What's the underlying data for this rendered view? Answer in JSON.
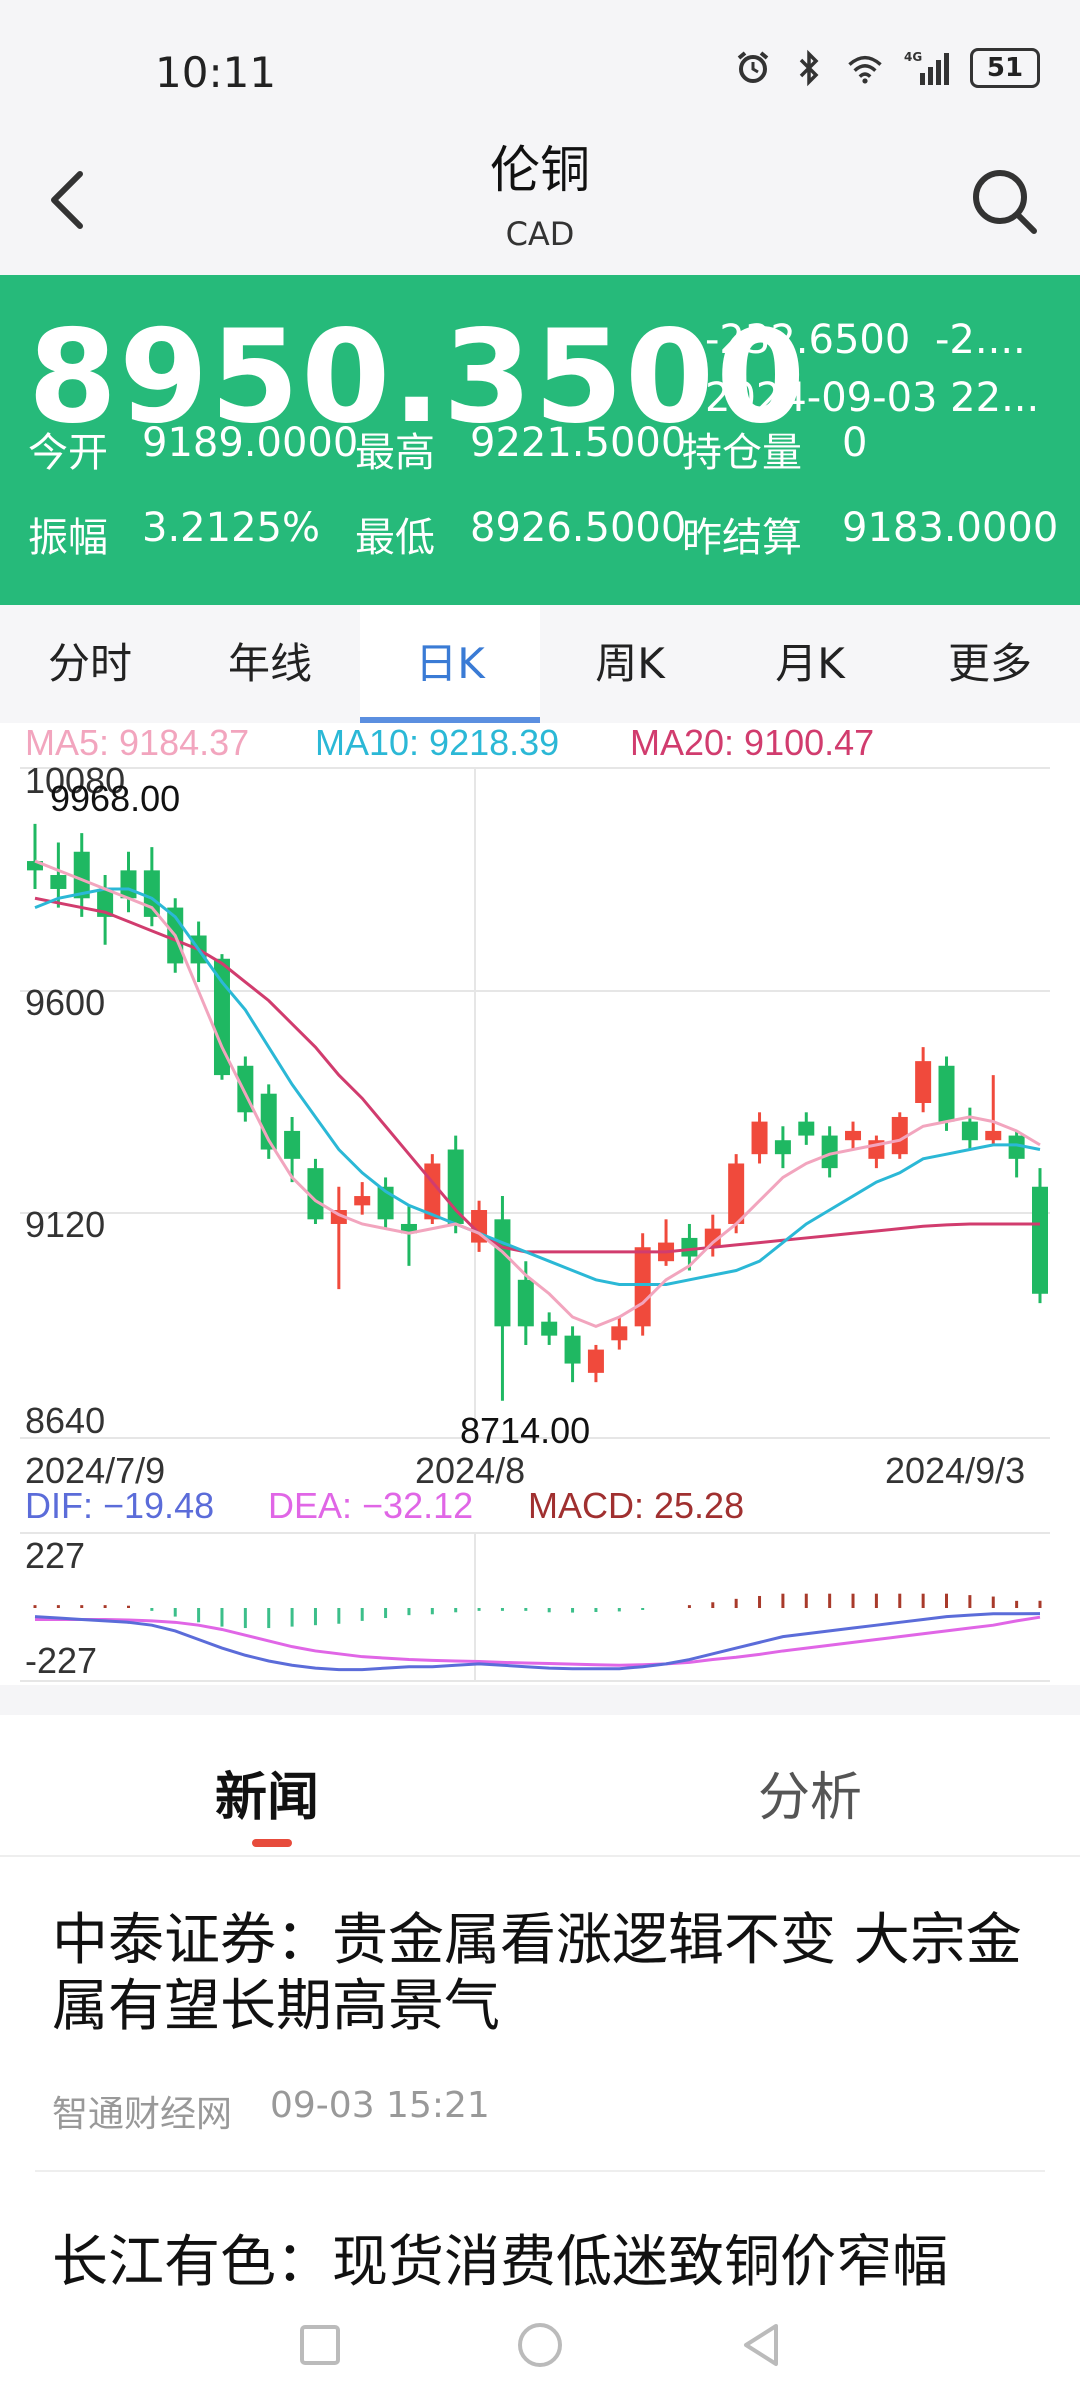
{
  "status": {
    "time": "10:11",
    "battery": "51",
    "network": "4G"
  },
  "header": {
    "title": "伦铜",
    "subtitle": "CAD"
  },
  "quote": {
    "price": "8950.3500",
    "change": "-232.6500",
    "change_pct": "-2....",
    "datetime": "2024-09-03 22...",
    "open_label": "今开",
    "open": "9189.0000",
    "high_label": "最高",
    "high": "9221.5000",
    "oi_label": "持仓量",
    "oi": "0",
    "amp_label": "振幅",
    "amp": "3.2125%",
    "low_label": "最低",
    "low": "8926.5000",
    "settle_label": "昨结算",
    "settle": "9183.0000"
  },
  "tabs": [
    "分时",
    "年线",
    "日K",
    "周K",
    "月K",
    "更多"
  ],
  "colors": {
    "up": "#f04a3c",
    "down": "#1fb862",
    "ma5": "#f2a5be",
    "ma10": "#2bb8d6",
    "ma20": "#d13c6e",
    "accent": "#26ba7a",
    "dif": "#5b6cd9",
    "dea": "#e066e6"
  },
  "chart": {
    "ma5_label": "MA5: 9184.37",
    "ma10_label": "MA10: 9218.39",
    "ma20_label": "MA20: 9100.47",
    "y_ticks": [
      "10080",
      "9600",
      "9120",
      "8640"
    ],
    "max_label": "9968.00",
    "min_label": "8714.00",
    "x_labels": [
      "2024/7/9",
      "2024/8",
      "2024/9/3"
    ],
    "dif_label": "DIF: −19.48",
    "dea_label": "DEA: −32.12",
    "macd_label": "MACD: 25.28",
    "macd_ticks": [
      "227",
      "-227"
    ]
  },
  "chart_data": {
    "type": "candlestick",
    "ylim": [
      8640,
      10080
    ],
    "candles": [
      {
        "o": 9880,
        "c": 9860,
        "h": 9960,
        "l": 9820
      },
      {
        "o": 9850,
        "c": 9820,
        "h": 9920,
        "l": 9780
      },
      {
        "o": 9900,
        "c": 9800,
        "h": 9940,
        "l": 9760
      },
      {
        "o": 9820,
        "c": 9760,
        "h": 9850,
        "l": 9700
      },
      {
        "o": 9860,
        "c": 9800,
        "h": 9900,
        "l": 9770
      },
      {
        "o": 9860,
        "c": 9760,
        "h": 9910,
        "l": 9740
      },
      {
        "o": 9780,
        "c": 9660,
        "h": 9800,
        "l": 9640
      },
      {
        "o": 9720,
        "c": 9660,
        "h": 9750,
        "l": 9620
      },
      {
        "o": 9670,
        "c": 9420,
        "h": 9680,
        "l": 9410
      },
      {
        "o": 9440,
        "c": 9340,
        "h": 9460,
        "l": 9320
      },
      {
        "o": 9380,
        "c": 9260,
        "h": 9400,
        "l": 9240
      },
      {
        "o": 9300,
        "c": 9240,
        "h": 9330,
        "l": 9190
      },
      {
        "o": 9220,
        "c": 9110,
        "h": 9240,
        "l": 9100
      },
      {
        "o": 9100,
        "c": 9130,
        "h": 9180,
        "l": 8960
      },
      {
        "o": 9140,
        "c": 9160,
        "h": 9190,
        "l": 9120
      },
      {
        "o": 9180,
        "c": 9110,
        "h": 9200,
        "l": 9090
      },
      {
        "o": 9100,
        "c": 9080,
        "h": 9140,
        "l": 9010
      },
      {
        "o": 9110,
        "c": 9230,
        "h": 9250,
        "l": 9100
      },
      {
        "o": 9260,
        "c": 9100,
        "h": 9290,
        "l": 9080
      },
      {
        "o": 9060,
        "c": 9130,
        "h": 9150,
        "l": 9040
      },
      {
        "o": 9110,
        "c": 8880,
        "h": 9160,
        "l": 8720
      },
      {
        "o": 8980,
        "c": 8880,
        "h": 9020,
        "l": 8840
      },
      {
        "o": 8890,
        "c": 8860,
        "h": 8910,
        "l": 8840
      },
      {
        "o": 8860,
        "c": 8800,
        "h": 8880,
        "l": 8760
      },
      {
        "o": 8780,
        "c": 8830,
        "h": 8840,
        "l": 8760
      },
      {
        "o": 8850,
        "c": 8880,
        "h": 8900,
        "l": 8830
      },
      {
        "o": 8880,
        "c": 9050,
        "h": 9080,
        "l": 8860
      },
      {
        "o": 9020,
        "c": 9060,
        "h": 9110,
        "l": 9010
      },
      {
        "o": 9070,
        "c": 9030,
        "h": 9100,
        "l": 9000
      },
      {
        "o": 9050,
        "c": 9090,
        "h": 9120,
        "l": 9030
      },
      {
        "o": 9100,
        "c": 9230,
        "h": 9250,
        "l": 9080
      },
      {
        "o": 9250,
        "c": 9320,
        "h": 9340,
        "l": 9230
      },
      {
        "o": 9280,
        "c": 9250,
        "h": 9310,
        "l": 9220
      },
      {
        "o": 9320,
        "c": 9290,
        "h": 9340,
        "l": 9270
      },
      {
        "o": 9290,
        "c": 9220,
        "h": 9310,
        "l": 9200
      },
      {
        "o": 9280,
        "c": 9300,
        "h": 9320,
        "l": 9260
      },
      {
        "o": 9240,
        "c": 9280,
        "h": 9290,
        "l": 9220
      },
      {
        "o": 9250,
        "c": 9330,
        "h": 9340,
        "l": 9240
      },
      {
        "o": 9360,
        "c": 9450,
        "h": 9480,
        "l": 9340
      },
      {
        "o": 9440,
        "c": 9320,
        "h": 9460,
        "l": 9300
      },
      {
        "o": 9320,
        "c": 9280,
        "h": 9350,
        "l": 9260
      },
      {
        "o": 9280,
        "c": 9300,
        "h": 9420,
        "l": 9270
      },
      {
        "o": 9290,
        "c": 9240,
        "h": 9300,
        "l": 9200
      },
      {
        "o": 9180,
        "c": 8950,
        "h": 9220,
        "l": 8930
      }
    ],
    "ma5": [
      9880,
      9860,
      9840,
      9820,
      9800,
      9780,
      9720,
      9600,
      9480,
      9380,
      9280,
      9200,
      9150,
      9120,
      9100,
      9090,
      9080,
      9090,
      9100,
      9080,
      9040,
      8990,
      8950,
      8900,
      8880,
      8900,
      8930,
      8980,
      9010,
      9060,
      9100,
      9150,
      9200,
      9230,
      9250,
      9260,
      9270,
      9280,
      9310,
      9320,
      9330,
      9320,
      9300,
      9270
    ],
    "ma10": [
      9780,
      9800,
      9810,
      9820,
      9820,
      9800,
      9760,
      9690,
      9620,
      9560,
      9480,
      9400,
      9330,
      9260,
      9210,
      9170,
      9140,
      9120,
      9100,
      9080,
      9060,
      9040,
      9020,
      9000,
      8980,
      8970,
      8970,
      8970,
      8980,
      8990,
      9000,
      9020,
      9060,
      9100,
      9130,
      9160,
      9190,
      9210,
      9240,
      9250,
      9260,
      9270,
      9270,
      9260
    ],
    "ma20": [
      9800,
      9790,
      9780,
      9770,
      9750,
      9730,
      9710,
      9690,
      9660,
      9620,
      9580,
      9530,
      9480,
      9420,
      9370,
      9310,
      9250,
      9190,
      9130,
      9080,
      9050,
      9040,
      9040,
      9040,
      9040,
      9040,
      9040,
      9040,
      9045,
      9050,
      9055,
      9060,
      9065,
      9070,
      9075,
      9080,
      9085,
      9090,
      9095,
      9098,
      9100,
      9100,
      9100,
      9100
    ],
    "macd_ylim": [
      -227,
      227
    ],
    "dif": [
      -30,
      -35,
      -40,
      -45,
      -50,
      -60,
      -80,
      -110,
      -140,
      -165,
      -185,
      -200,
      -210,
      -215,
      -215,
      -210,
      -205,
      -205,
      -200,
      -195,
      -200,
      -205,
      -210,
      -212,
      -212,
      -212,
      -205,
      -195,
      -180,
      -160,
      -140,
      -120,
      -100,
      -90,
      -80,
      -70,
      -60,
      -50,
      -40,
      -30,
      -25,
      -20,
      -20,
      -19.48
    ],
    "dea": [
      -40,
      -40,
      -40,
      -40,
      -42,
      -45,
      -50,
      -60,
      -75,
      -95,
      -115,
      -135,
      -150,
      -160,
      -170,
      -175,
      -180,
      -183,
      -185,
      -187,
      -190,
      -192,
      -194,
      -196,
      -198,
      -200,
      -198,
      -195,
      -190,
      -180,
      -172,
      -162,
      -150,
      -140,
      -130,
      -120,
      -110,
      -100,
      -90,
      -80,
      -70,
      -60,
      -45,
      -32.12
    ],
    "macd": [
      10,
      10,
      10,
      10,
      8,
      -10,
      -30,
      -50,
      -65,
      -70,
      -70,
      -65,
      -60,
      -55,
      -45,
      -35,
      -25,
      -22,
      -15,
      -10,
      -10,
      -10,
      -15,
      -16,
      -14,
      -12,
      -7,
      0,
      10,
      20,
      32,
      42,
      50,
      50,
      50,
      50,
      50,
      50,
      50,
      50,
      45,
      40,
      25,
      25.28
    ]
  },
  "news": {
    "tabs": [
      "新闻",
      "分析"
    ],
    "articles": [
      {
        "title": "中泰证券：贵金属看涨逻辑不变 大宗金属有望长期高景气",
        "source": "智通财经网",
        "time": "09-03 15:21"
      },
      {
        "title": "长江有色：现货消费低迷致铜价窄幅",
        "source": "",
        "time": ""
      }
    ]
  }
}
